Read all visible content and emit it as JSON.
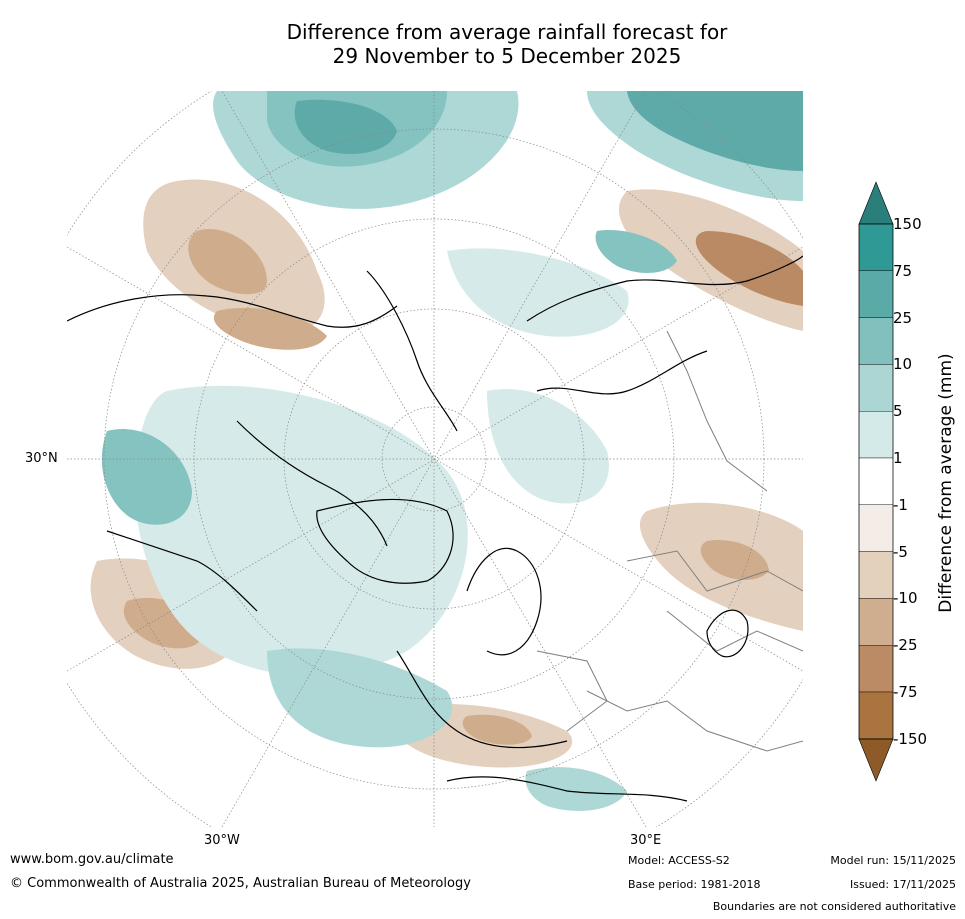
{
  "title": {
    "line1": "Difference from average rainfall forecast for",
    "line2": "29 November to 5 December 2025"
  },
  "map": {
    "projection": "north polar stereographic",
    "labels": {
      "lon_left": "30°W",
      "lon_right": "30°E",
      "lat": "30°N"
    },
    "colors": {
      "wet_light": "#d6ebe9",
      "wet_mid": "#add8d6",
      "wet_deep": "#84c3c0",
      "wet_strong": "#5eaaa8",
      "dry_light": "#f4ede7",
      "dry_mid": "#e3d0be",
      "dry_deep": "#cfac8c",
      "dry_strong": "#b98a63",
      "coast": "#000000",
      "border": "#808080"
    }
  },
  "colorbar": {
    "title": "Difference from average (mm)",
    "ticks": [
      "150",
      "75",
      "25",
      "10",
      "5",
      "1",
      "-1",
      "-5",
      "-10",
      "-25",
      "-75",
      "-150"
    ],
    "colors": [
      "#2f9996",
      "#5aaaa8",
      "#82c0be",
      "#abd6d4",
      "#d4eae8",
      "#ffffff",
      "#f4ede7",
      "#e3d0bd",
      "#cfae8f",
      "#ba8b65",
      "#aa7440"
    ],
    "cap_top": "#2a7f7c",
    "cap_bottom": "#8e5a28"
  },
  "footer": {
    "url": "www.bom.gov.au/climate",
    "copyright": "© Commonwealth of Australia 2025, Australian Bureau of Meteorology",
    "model": "Model: ACCESS-S2",
    "base_period": "Base period: 1981-2018",
    "model_run": "Model run: 15/11/2025",
    "issued": "Issued: 17/11/2025",
    "disclaimer": "Boundaries are not considered authoritative"
  }
}
